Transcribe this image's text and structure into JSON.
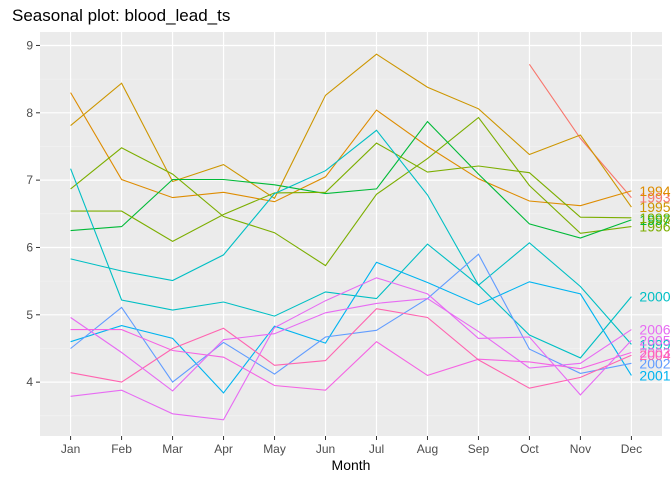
{
  "chart_data": {
    "type": "line",
    "title": "Seasonal plot: blood_lead_ts",
    "xlabel": "Month",
    "ylabel": "",
    "categories": [
      "Jan",
      "Feb",
      "Mar",
      "Apr",
      "May",
      "Jun",
      "Jul",
      "Aug",
      "Sep",
      "Oct",
      "Nov",
      "Dec"
    ],
    "ylim": [
      3.2,
      9.2
    ],
    "yticks": [
      4,
      5,
      6,
      7,
      8,
      9
    ],
    "grid": true,
    "legend": "direct labels at series end",
    "series": [
      {
        "name": "1993",
        "color": "#F8766D",
        "values": [
          null,
          null,
          null,
          null,
          null,
          null,
          null,
          null,
          null,
          8.72,
          7.62,
          6.74
        ]
      },
      {
        "name": "1994",
        "color": "#DE8C00",
        "values": [
          8.3,
          7.01,
          6.74,
          6.82,
          6.68,
          7.05,
          8.04,
          7.5,
          7.02,
          6.69,
          6.62,
          6.84
        ]
      },
      {
        "name": "1995",
        "color": "#CD9600",
        "values": [
          7.81,
          8.44,
          6.98,
          7.23,
          6.73,
          8.26,
          8.87,
          8.38,
          8.06,
          7.38,
          7.67,
          6.6
        ]
      },
      {
        "name": "1996",
        "color": "#7CAE00",
        "values": [
          6.87,
          7.48,
          7.09,
          6.46,
          6.22,
          5.73,
          6.79,
          7.32,
          7.93,
          6.92,
          6.21,
          6.31
        ]
      },
      {
        "name": "1997",
        "color": "#00BA38",
        "values": [
          6.25,
          6.31,
          7.01,
          7.01,
          6.93,
          6.8,
          6.87,
          7.87,
          7.09,
          6.35,
          6.14,
          6.41
        ]
      },
      {
        "name": "1998",
        "color": "#7CAE00",
        "values": [
          6.54,
          6.54,
          6.09,
          6.49,
          6.81,
          6.82,
          7.55,
          7.12,
          7.21,
          7.11,
          6.45,
          6.44
        ]
      },
      {
        "name": "1999",
        "color": "#00BFC4",
        "values": [
          5.83,
          5.65,
          5.51,
          5.89,
          6.8,
          7.14,
          7.74,
          6.78,
          5.44,
          6.07,
          5.42,
          4.56
        ]
      },
      {
        "name": "2000",
        "color": "#00BFC4",
        "values": [
          7.17,
          5.22,
          5.07,
          5.19,
          4.98,
          5.34,
          5.24,
          6.05,
          5.44,
          4.7,
          4.36,
          5.27
        ]
      },
      {
        "name": "2001",
        "color": "#00B4F0",
        "values": [
          4.6,
          4.84,
          4.65,
          3.84,
          4.83,
          4.58,
          5.78,
          5.48,
          5.15,
          5.49,
          5.31,
          4.1
        ]
      },
      {
        "name": "2002",
        "color": "#619CFF",
        "values": [
          4.5,
          5.11,
          4.0,
          4.59,
          4.12,
          4.67,
          4.77,
          5.24,
          5.9,
          4.49,
          4.13,
          4.28
        ]
      },
      {
        "name": "2003",
        "color": "#F564E3",
        "values": [
          4.78,
          4.78,
          4.47,
          4.37,
          3.95,
          3.88,
          4.6,
          4.1,
          4.34,
          4.3,
          4.2,
          4.44
        ]
      },
      {
        "name": "2004",
        "color": "#FF64B0",
        "values": [
          4.14,
          4.0,
          4.5,
          4.8,
          4.25,
          4.32,
          5.09,
          4.96,
          4.33,
          3.91,
          4.07,
          4.4
        ]
      },
      {
        "name": "2005",
        "color": "#E76BF3",
        "values": [
          3.79,
          3.88,
          3.53,
          3.44,
          4.81,
          5.21,
          5.55,
          5.31,
          4.65,
          4.67,
          3.81,
          4.62
        ]
      },
      {
        "name": "2006",
        "color": "#E76BF3",
        "values": [
          4.96,
          4.44,
          3.87,
          4.63,
          4.72,
          5.03,
          5.17,
          5.24,
          4.75,
          4.21,
          4.28,
          4.78
        ]
      }
    ]
  }
}
